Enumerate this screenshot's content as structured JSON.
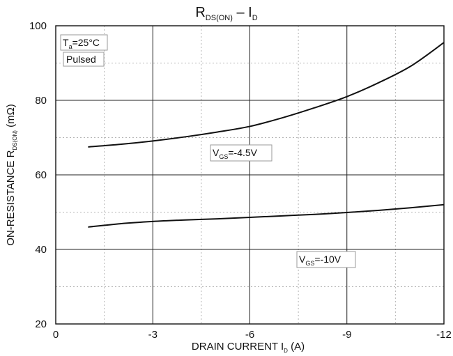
{
  "chart_data": {
    "type": "line",
    "title": {
      "main": "R",
      "sub": "DS(ON)",
      "dash": " – I",
      "sub2": "D"
    },
    "xlabel": {
      "main": "DRAIN CURRENT I",
      "sub": "D",
      "rest": " (A)"
    },
    "ylabel": {
      "main": "ON-RESISTANCE R",
      "sub": "DS(ON)",
      "rest": " (mΩ)"
    },
    "xlim": [
      0,
      -12
    ],
    "ylim": [
      20,
      100
    ],
    "x_ticks": [
      0,
      -3,
      -6,
      -9,
      -12
    ],
    "x_tick_labels": [
      "0",
      "-3",
      "-6",
      "-9",
      "-12"
    ],
    "y_ticks": [
      20,
      40,
      60,
      80,
      100
    ],
    "y_tick_labels": [
      "20",
      "40",
      "60",
      "80",
      "100"
    ],
    "grid": true,
    "series": [
      {
        "label_main": "V",
        "label_sub": "GS",
        "label_rest": "=-4.5V",
        "x": [
          -1,
          -2,
          -3,
          -4,
          -5,
          -6,
          -7,
          -8,
          -9,
          -10,
          -11,
          -12
        ],
        "y": [
          67.5,
          68.2,
          69.1,
          70.2,
          71.5,
          73.0,
          75.3,
          78.0,
          81.0,
          84.8,
          89.3,
          95.5
        ]
      },
      {
        "label_main": "V",
        "label_sub": "GS",
        "label_rest": "=-10V",
        "x": [
          -1,
          -2,
          -3,
          -4,
          -5,
          -6,
          -7,
          -8,
          -9,
          -10,
          -11,
          -12
        ],
        "y": [
          46.0,
          46.9,
          47.5,
          47.9,
          48.2,
          48.6,
          49.0,
          49.4,
          49.9,
          50.5,
          51.2,
          52.0
        ]
      }
    ],
    "annotations": [
      {
        "line1": "T",
        "line1_sub": "a",
        "line1_rest": "=25°C",
        "line2": "Pulsed"
      }
    ]
  }
}
